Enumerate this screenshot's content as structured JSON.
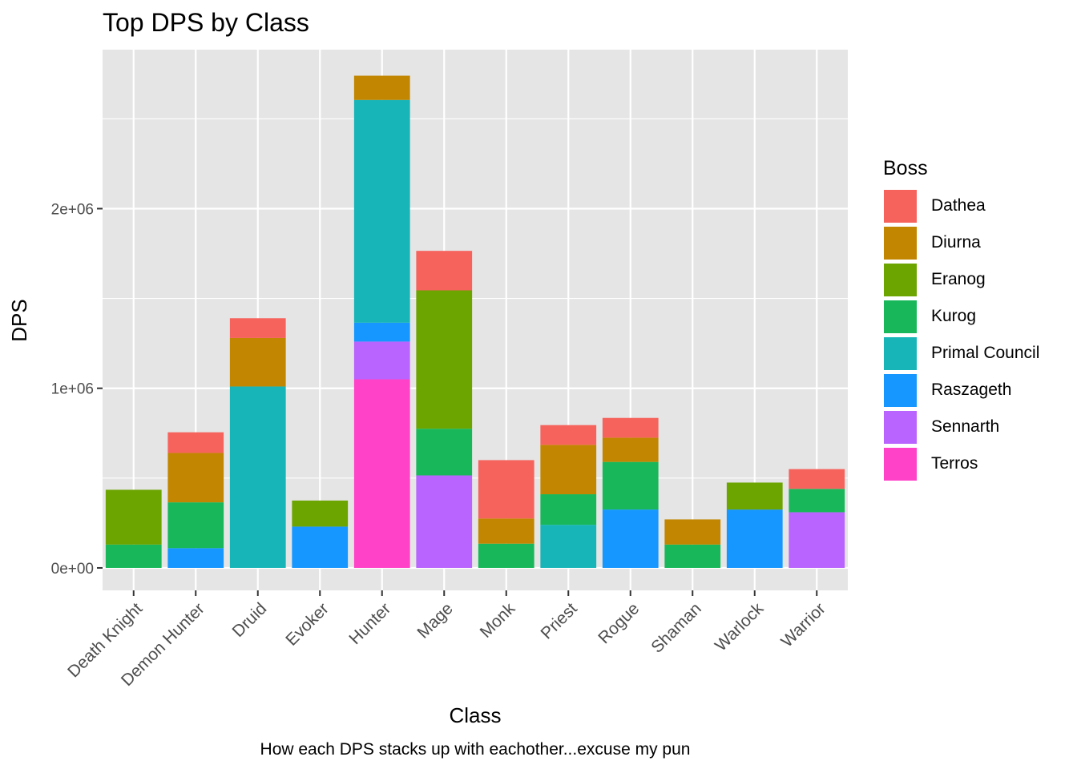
{
  "chart_data": {
    "type": "bar",
    "stacked": true,
    "title": "Top DPS by Class",
    "caption": "How each DPS stacks up with eachother...excuse my pun",
    "xlabel": "Class",
    "ylabel": "DPS",
    "ylim": [
      -125000,
      2885000
    ],
    "yticks": [
      0,
      1000000,
      2000000
    ],
    "yticklabels": [
      "0e+00",
      "1e+06",
      "2e+06"
    ],
    "grid": true,
    "legend_title": "Boss",
    "legend_position": "right",
    "categories": [
      "Death Knight",
      "Demon Hunter",
      "Druid",
      "Evoker",
      "Hunter",
      "Mage",
      "Monk",
      "Priest",
      "Rogue",
      "Shaman",
      "Warlock",
      "Warrior"
    ],
    "series": [
      {
        "name": "Terros",
        "color": "#FF42C8",
        "values": [
          0,
          0,
          0,
          0,
          1050000,
          0,
          0,
          0,
          0,
          0,
          0,
          0
        ]
      },
      {
        "name": "Sennarth",
        "color": "#B964FE",
        "values": [
          0,
          0,
          0,
          0,
          210000,
          515000,
          0,
          0,
          0,
          0,
          0,
          310000
        ]
      },
      {
        "name": "Raszageth",
        "color": "#1597FF",
        "values": [
          0,
          110000,
          0,
          230000,
          105000,
          0,
          0,
          0,
          325000,
          0,
          325000,
          0
        ]
      },
      {
        "name": "Primal Council",
        "color": "#17B5B8",
        "values": [
          0,
          0,
          1010000,
          0,
          1240000,
          0,
          0,
          240000,
          0,
          0,
          0,
          0
        ]
      },
      {
        "name": "Kurog",
        "color": "#18B85A",
        "values": [
          130000,
          255000,
          0,
          0,
          0,
          260000,
          135000,
          170000,
          265000,
          130000,
          0,
          130000
        ]
      },
      {
        "name": "Eranog",
        "color": "#6CA400",
        "values": [
          305000,
          0,
          0,
          145000,
          0,
          770000,
          0,
          0,
          0,
          0,
          150000,
          0
        ]
      },
      {
        "name": "Diurna",
        "color": "#C28600",
        "values": [
          0,
          275000,
          270000,
          0,
          135000,
          0,
          140000,
          275000,
          135000,
          140000,
          0,
          0
        ]
      },
      {
        "name": "Dathea",
        "color": "#F6635D",
        "values": [
          0,
          115000,
          110000,
          0,
          0,
          220000,
          325000,
          110000,
          110000,
          0,
          0,
          110000
        ]
      }
    ],
    "legend_order": [
      "Dathea",
      "Diurna",
      "Eranog",
      "Kurog",
      "Primal Council",
      "Raszageth",
      "Sennarth",
      "Terros"
    ],
    "panel_color": "#E5E5E5",
    "grid_color": "#FFFFFF",
    "text_color": "#000000",
    "tick_color": "#4D4D4D"
  }
}
